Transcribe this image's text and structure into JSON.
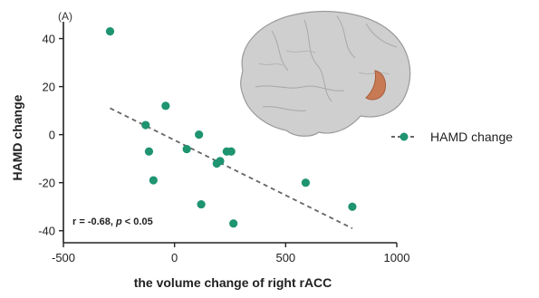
{
  "colors": {
    "marker": "#1e9470",
    "trendline": "#666666",
    "axis": "#222222",
    "brain_surface": "#c9c9c9",
    "roi_highlight": "#c87a55"
  },
  "panel_label": "(A)",
  "stat_annotation": {
    "prefix": "r = -0.68, ",
    "p_symbol": "p",
    "suffix": " < 0.05"
  },
  "inset": {
    "icon": "brain-lateral-view-icon",
    "highlight": "right rACC"
  },
  "chart_data": {
    "type": "scatter",
    "xlabel": "the volume change of  right  rACC",
    "ylabel": "HAMD change",
    "xlim": [
      -500,
      1000
    ],
    "ylim": [
      -45,
      47
    ],
    "x_ticks": [
      -500,
      0,
      500,
      1000
    ],
    "y_ticks": [
      -40,
      -20,
      0,
      20,
      40
    ],
    "x_tick_labels": [
      "-500",
      "0",
      "500",
      "1000"
    ],
    "y_tick_labels": [
      "-40",
      "-20",
      "0",
      "20",
      "40"
    ],
    "grid": false,
    "legend_position": "right",
    "series": [
      {
        "name": "HAMD change",
        "points": [
          {
            "x": -290,
            "y": 43
          },
          {
            "x": -40,
            "y": 12
          },
          {
            "x": -130,
            "y": 4
          },
          {
            "x": -115,
            "y": -7
          },
          {
            "x": -95,
            "y": -19
          },
          {
            "x": 55,
            "y": -6
          },
          {
            "x": 110,
            "y": 0
          },
          {
            "x": 120,
            "y": -29
          },
          {
            "x": 190,
            "y": -12
          },
          {
            "x": 205,
            "y": -11
          },
          {
            "x": 235,
            "y": -7
          },
          {
            "x": 255,
            "y": -7
          },
          {
            "x": 265,
            "y": -37
          },
          {
            "x": 590,
            "y": -20
          },
          {
            "x": 800,
            "y": -30
          }
        ]
      }
    ],
    "trendline": {
      "style": "dashed",
      "x": [
        -290,
        800
      ],
      "y": [
        11,
        -39
      ]
    }
  }
}
